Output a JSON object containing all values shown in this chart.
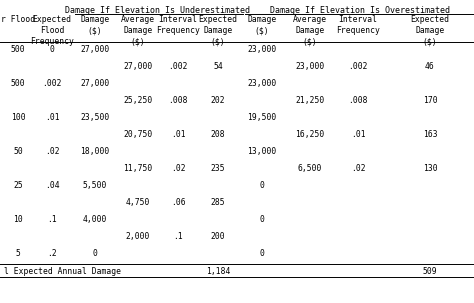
{
  "title_under": "Damage If Elevation Is Underestimated",
  "title_over": "Damage If Elevation Is Overestimated",
  "col_headers": [
    "r Flood",
    "Expected\nFlood\nFrequency",
    "Damage\n($)",
    "Average\nDamage\n($)",
    "Interval\nFrequency",
    "Expected\nDamage\n($)",
    "Damage\n($)",
    "Average\nDamage\n($)",
    "Interval\nFrequency",
    "Expected\nDamage\n($)"
  ],
  "rows": [
    [
      "500",
      "0",
      "27,000",
      "",
      "",
      "",
      "23,000",
      "",
      "",
      ""
    ],
    [
      "",
      "",
      "",
      "27,000",
      ".002",
      "54",
      "",
      "23,000",
      ".002",
      "46"
    ],
    [
      "500",
      ".002",
      "27,000",
      "",
      "",
      "",
      "23,000",
      "",
      "",
      ""
    ],
    [
      "",
      "",
      "",
      "25,250",
      ".008",
      "202",
      "",
      "21,250",
      ".008",
      "170"
    ],
    [
      "100",
      ".01",
      "23,500",
      "",
      "",
      "",
      "19,500",
      "",
      "",
      ""
    ],
    [
      "",
      "",
      "",
      "20,750",
      ".01",
      "208",
      "",
      "16,250",
      ".01",
      "163"
    ],
    [
      "50",
      ".02",
      "18,000",
      "",
      "",
      "",
      "13,000",
      "",
      "",
      ""
    ],
    [
      "",
      "",
      "",
      "11,750",
      ".02",
      "235",
      "",
      "6,500",
      ".02",
      "130"
    ],
    [
      "25",
      ".04",
      "5,500",
      "",
      "",
      "",
      "0",
      "",
      "",
      ""
    ],
    [
      "",
      "",
      "",
      "4,750",
      ".06",
      "285",
      "",
      "",
      "",
      ""
    ],
    [
      "10",
      ".1",
      "4,000",
      "",
      "",
      "",
      "0",
      "",
      "",
      ""
    ],
    [
      "",
      "",
      "",
      "2,000",
      ".1",
      "200",
      "",
      "",
      "",
      ""
    ],
    [
      "5",
      ".2",
      "0",
      "",
      "",
      "",
      "0",
      "",
      "",
      ""
    ]
  ],
  "footer_label": "l Expected Annual Damage",
  "footer_under_val": "1,184",
  "footer_over_val": "509",
  "bg_color": "#ffffff",
  "text_color": "#000000",
  "font_size": 5.8,
  "header_font_size": 5.8,
  "title_font_size": 6.0
}
